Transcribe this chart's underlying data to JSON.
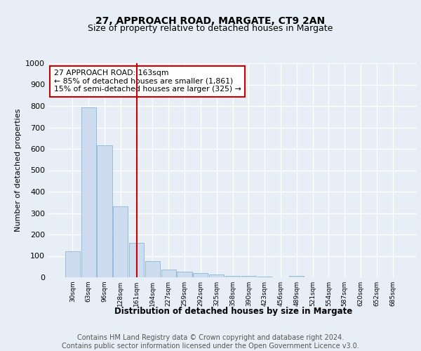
{
  "title": "27, APPROACH ROAD, MARGATE, CT9 2AN",
  "subtitle": "Size of property relative to detached houses in Margate",
  "xlabel": "Distribution of detached houses by size in Margate",
  "ylabel": "Number of detached properties",
  "categories": [
    "30sqm",
    "63sqm",
    "96sqm",
    "128sqm",
    "161sqm",
    "194sqm",
    "227sqm",
    "259sqm",
    "292sqm",
    "325sqm",
    "358sqm",
    "390sqm",
    "423sqm",
    "456sqm",
    "489sqm",
    "521sqm",
    "554sqm",
    "587sqm",
    "620sqm",
    "652sqm",
    "685sqm"
  ],
  "values": [
    122,
    795,
    618,
    330,
    160,
    75,
    35,
    25,
    20,
    14,
    8,
    5,
    3,
    0,
    5,
    0,
    0,
    0,
    0,
    0,
    0
  ],
  "bar_color": "#cddcee",
  "bar_edge_color": "#7aadd4",
  "vline_x": 4,
  "vline_color": "#cc0000",
  "annotation_text": "27 APPROACH ROAD: 163sqm\n← 85% of detached houses are smaller (1,861)\n15% of semi-detached houses are larger (325) →",
  "annotation_box_color": "#ffffff",
  "annotation_box_edge": "#cc0000",
  "ylim": [
    0,
    1000
  ],
  "yticks": [
    0,
    100,
    200,
    300,
    400,
    500,
    600,
    700,
    800,
    900,
    1000
  ],
  "footer": "Contains HM Land Registry data © Crown copyright and database right 2024.\nContains public sector information licensed under the Open Government Licence v3.0.",
  "bg_color": "#e8eef5",
  "plot_bg_color": "#e8eef5",
  "grid_color": "#ffffff",
  "title_fontsize": 10,
  "subtitle_fontsize": 9,
  "footer_fontsize": 7,
  "ylabel_fontsize": 8
}
